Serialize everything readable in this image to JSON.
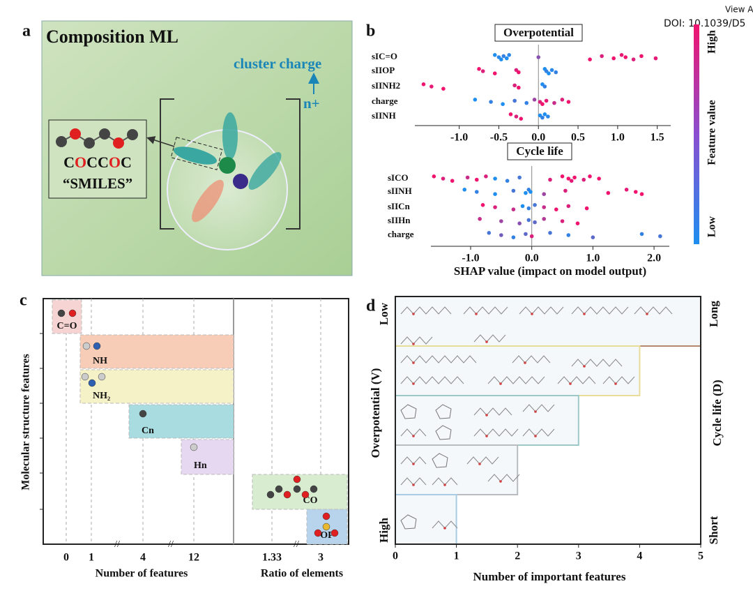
{
  "header": {
    "view": "View A",
    "doi": "DOI: 10.1039/D5"
  },
  "panel_a": {
    "label": "a",
    "title": "Composition ML",
    "charge_label": "cluster charge",
    "charge_sign": "n+",
    "smiles": [
      "C",
      "O",
      "C",
      "C",
      "O",
      "C"
    ],
    "smiles_caption": "“SMILES”"
  },
  "panel_b": {
    "label": "b",
    "colorbar_high": "High",
    "colorbar_low": "Low",
    "colorbar_title": "Feature value",
    "color_low": "#1e8ef0",
    "color_high": "#f0146e"
  },
  "chart_data": [
    {
      "type": "beeswarm",
      "title": "Overpotential",
      "categories": [
        "sIC=O",
        "sIIOP",
        "sIINH2",
        "charge",
        "sIINH"
      ],
      "xlim": [
        -1.56,
        1.67
      ],
      "xticks": [
        {
          "value": -1,
          "label": "-1.0"
        },
        -0.5,
        {
          "value": 0,
          "label": "0.0"
        },
        0.5,
        {
          "value": 1,
          "label": "1.0"
        },
        1.5
      ],
      "values": [
        [
          -0.55,
          -0.5,
          -0.47,
          -0.44,
          -0.4,
          -0.37,
          0.0,
          0.65,
          0.8,
          0.95,
          1.05,
          1.1,
          1.2,
          1.3,
          1.48
        ],
        [
          -0.75,
          -0.7,
          -0.55,
          -0.28,
          -0.25,
          0.08,
          0.1,
          0.13,
          0.17,
          0.22
        ],
        [
          -1.45,
          -1.35,
          -1.2,
          -0.3,
          -0.25,
          0.05,
          0.08
        ],
        [
          -0.8,
          -0.6,
          -0.45,
          -0.3,
          -0.15,
          -0.05,
          0.02,
          0.05,
          0.1,
          0.2,
          0.3,
          0.38
        ],
        [
          -0.35,
          -0.28,
          -0.22,
          0.02,
          0.05,
          0.08,
          0.12
        ]
      ],
      "levels": [
        [
          0,
          0.05,
          0,
          0.1,
          0,
          0.05,
          0.5,
          1,
          0.9,
          1,
          0.95,
          1,
          0.9,
          1,
          0.95
        ],
        [
          1,
          0.9,
          1,
          0.9,
          1,
          0,
          0.1,
          0,
          0.05,
          0.1
        ],
        [
          1,
          0.95,
          1,
          0.9,
          1,
          0,
          0.1
        ],
        [
          0,
          0.1,
          0,
          0.2,
          0.1,
          0.6,
          0.9,
          1,
          0.95,
          0.8,
          0.9,
          1
        ],
        [
          1,
          0.9,
          1,
          0,
          0.1,
          0,
          0.05
        ]
      ]
    },
    {
      "type": "beeswarm",
      "title": "Cycle life",
      "xlabel": "SHAP value (impact on model output)",
      "categories": [
        "sICO",
        "sIINH",
        "sIICn",
        "sIIHn",
        "charge"
      ],
      "xlim": [
        -1.65,
        2.25
      ],
      "xticks": [
        {
          "value": -1,
          "label": "-1.0"
        },
        {
          "value": 0,
          "label": "0.0"
        },
        {
          "value": 1,
          "label": "1.0"
        },
        {
          "value": 2,
          "label": "2.0"
        }
      ],
      "values": [
        [
          -1.6,
          -1.45,
          -1.3,
          -1.05,
          -0.9,
          -0.75,
          -0.6,
          -0.4,
          -0.2,
          0.3,
          0.5,
          0.6,
          0.65,
          0.7,
          0.85,
          0.95,
          1.1
        ],
        [
          -1.1,
          -0.9,
          -0.6,
          -0.3,
          -0.1,
          -0.05,
          -0.02,
          0.2,
          0.55,
          1.25,
          1.55,
          1.7,
          1.8
        ],
        [
          -0.8,
          -0.6,
          -0.3,
          -0.15,
          -0.05,
          0.05,
          0.2,
          0.4,
          0.6,
          0.9
        ],
        [
          -0.85,
          -0.5,
          -0.2,
          -0.05,
          0.05,
          0.2,
          0.5,
          0.75
        ],
        [
          -0.7,
          -0.5,
          -0.3,
          -0.1,
          0.0,
          0.3,
          0.6,
          1.0,
          1.8,
          2.1
        ]
      ],
      "levels": [
        [
          1,
          0.9,
          1,
          0.8,
          1,
          0.9,
          0,
          0.1,
          0.2,
          0.9,
          1,
          1,
          0.95,
          1,
          0.9,
          1,
          1
        ],
        [
          0,
          0.1,
          0,
          0.2,
          0,
          0.1,
          0,
          0.6,
          0.9,
          1,
          0.95,
          1,
          1
        ],
        [
          1,
          0.9,
          0.8,
          0,
          0.1,
          0.2,
          0.8,
          1,
          0.9,
          1
        ],
        [
          0.8,
          0.6,
          0.5,
          0.2,
          0.3,
          0.7,
          0.9,
          1
        ],
        [
          0.2,
          0.4,
          0.1,
          0.3,
          0.9,
          0.2,
          0.1,
          0.3,
          0.1,
          0.2
        ]
      ]
    },
    {
      "type": "step",
      "xlabel": "Number of important features",
      "ylabel_left": "Overpotential (V)",
      "ylabel_right": "Cycle life (D)",
      "top_left": "Low",
      "bottom_left": "High",
      "top_right": "Long",
      "bottom_right": "Short",
      "values": [
        5,
        4,
        3,
        2,
        1
      ],
      "colors": [
        "#b4876e",
        "#e8dc9a",
        "#9cc8c8",
        "#b8bcc0",
        "#a8cce4"
      ],
      "xlim": [
        0,
        5
      ],
      "xticks": [
        0,
        1,
        2,
        3,
        4,
        5
      ]
    }
  ],
  "panel_c": {
    "label": "c",
    "ylabel": "Molecular structure features",
    "xlabel_left": "Number of features",
    "xlabel_right": "Ratio of elements",
    "xtick_labels": [
      "0",
      "1",
      "4",
      "12",
      "1.33",
      "3"
    ],
    "features": [
      "C=O",
      "NH",
      "NH₂",
      "Cn",
      "Hn",
      "CO",
      "OP"
    ]
  },
  "panel_d": {
    "label": "d"
  }
}
